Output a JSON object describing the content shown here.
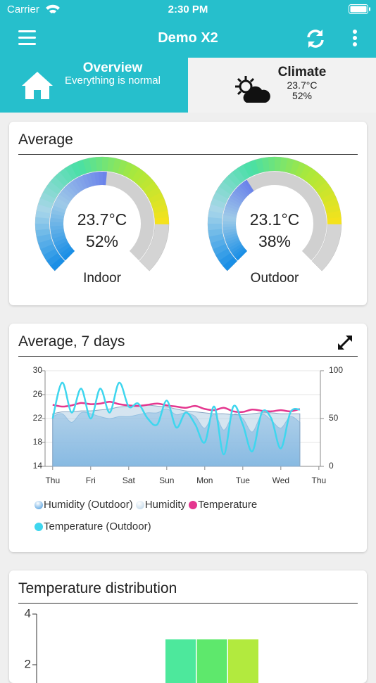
{
  "status_bar": {
    "carrier": "Carrier",
    "time": "2:30 PM"
  },
  "nav": {
    "title": "Demo X2"
  },
  "tabs": [
    {
      "title": "Overview",
      "subtitle": "Everything is normal"
    },
    {
      "title": "Climate",
      "lines": [
        "23.7°C",
        "52%"
      ]
    }
  ],
  "average_card": {
    "title": "Average",
    "gauges": [
      {
        "temperature": "23.7°C",
        "humidity": "52%",
        "label": "Indoor"
      },
      {
        "temperature": "23.1°C",
        "humidity": "38%",
        "label": "Outdoor"
      }
    ]
  },
  "chart_data": [
    {
      "type": "line",
      "title": "Average, 7 days",
      "x": [
        0,
        0.25,
        0.5,
        0.75,
        1,
        1.25,
        1.5,
        1.75,
        2,
        2.25,
        2.5,
        2.75,
        3,
        3.25,
        3.5,
        3.75,
        4,
        4.25,
        4.5,
        4.75,
        5,
        5.25,
        5.5,
        5.75,
        6,
        6.25,
        6.5
      ],
      "xlim": [
        -0.2,
        7.04
      ],
      "xticks": [
        {
          "value": 0,
          "label": "Thu"
        },
        {
          "value": 1,
          "label": "Fri"
        },
        {
          "value": 2,
          "label": "Sat"
        },
        {
          "value": 3,
          "label": "Sun"
        },
        {
          "value": 4,
          "label": "Mon"
        },
        {
          "value": 5,
          "label": "Tue"
        },
        {
          "value": 6,
          "label": "Wed"
        },
        {
          "value": 7,
          "label": "Thu"
        }
      ],
      "ylim": [
        14,
        30
      ],
      "yticks": [
        14,
        18,
        22,
        26,
        30
      ],
      "y2lim": [
        0,
        100
      ],
      "y2ticks": [
        0,
        50,
        100
      ],
      "grid": true,
      "series": [
        {
          "name": "Humidity (Outdoor)",
          "color": "#3d94dc",
          "style": "area",
          "axis": "y2",
          "values": [
            52,
            55,
            46,
            56,
            55,
            52,
            50,
            52,
            52,
            54,
            56,
            56,
            60,
            54,
            56,
            52,
            40,
            55,
            38,
            54,
            50,
            36,
            54,
            48,
            40,
            52,
            46
          ]
        },
        {
          "name": "Humidity",
          "color": "#b9d3e6",
          "style": "area",
          "axis": "y2",
          "values": [
            55,
            57,
            57,
            58,
            58,
            59,
            60,
            62,
            63,
            64,
            64,
            63,
            62,
            60,
            58,
            57,
            56,
            55,
            55,
            54,
            54,
            55,
            56,
            56,
            55,
            55,
            55
          ]
        },
        {
          "name": "Temperature",
          "color": "#e4378f",
          "style": "line",
          "values": [
            24.3,
            24,
            24.2,
            24.6,
            24.4,
            24.5,
            24.8,
            24.4,
            24.2,
            24.1,
            24.3,
            24.5,
            24.2,
            24,
            23.8,
            24.1,
            23.6,
            23.4,
            23.8,
            23.2,
            23.1,
            23.5,
            23.3,
            23.2,
            23.4,
            23.2,
            23.6
          ]
        },
        {
          "name": "Temperature (Outdoor)",
          "color": "#3fd6ee",
          "style": "line",
          "values": [
            22,
            28,
            23,
            27,
            22,
            27,
            23,
            28,
            24,
            24.5,
            22,
            21,
            25,
            20.5,
            23,
            21,
            18,
            24,
            16,
            24,
            21,
            16.5,
            23,
            22,
            17,
            23,
            23.5
          ]
        }
      ]
    },
    {
      "type": "bar",
      "title": "Temperature distribution",
      "categories": [
        null,
        null,
        null
      ],
      "values": [
        3,
        3,
        3
      ],
      "colors": [
        "#4de89c",
        "#5ee86c",
        "#b2ea3e"
      ],
      "ylim": [
        0,
        4
      ],
      "yticks": [
        2,
        4
      ]
    }
  ]
}
